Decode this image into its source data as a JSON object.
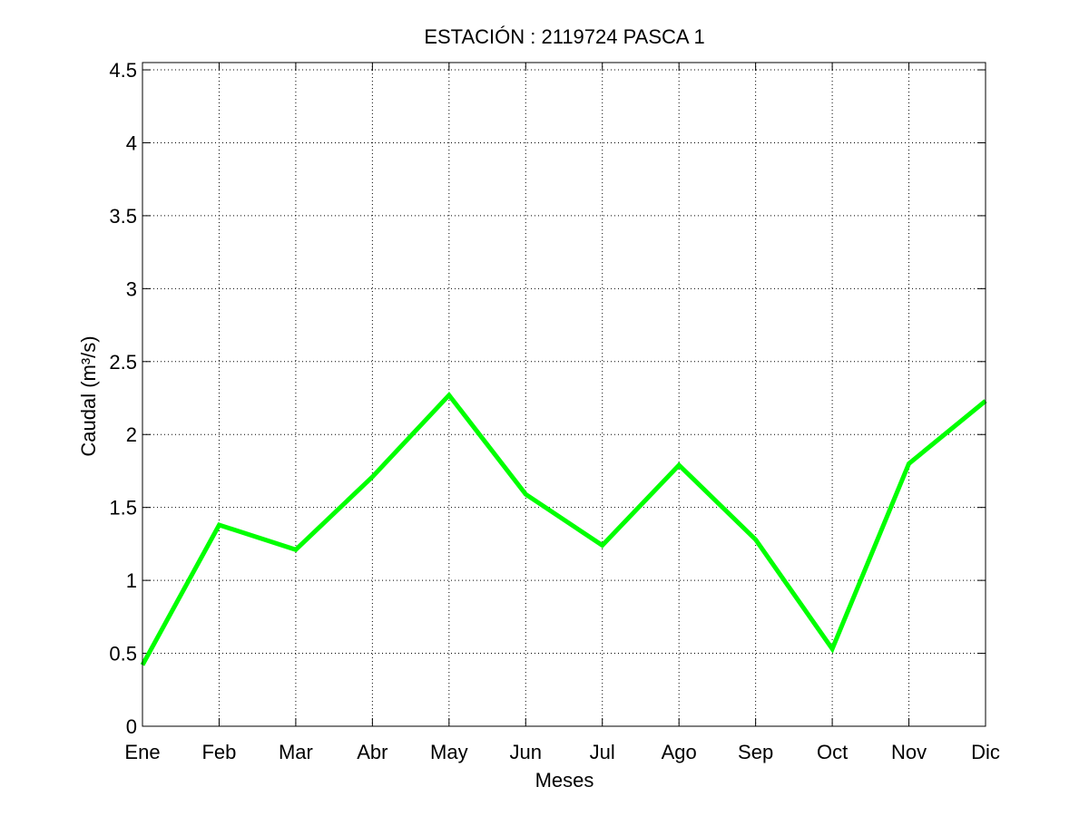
{
  "chart_data": {
    "type": "line",
    "title": "ESTACIÓN :  2119724  PASCA 1",
    "xlabel": "Meses",
    "ylabel": "Caudal (m³/s)",
    "categories": [
      "Ene",
      "Feb",
      "Mar",
      "Abr",
      "May",
      "Jun",
      "Jul",
      "Ago",
      "Sep",
      "Oct",
      "Nov",
      "Dic"
    ],
    "series": [
      {
        "values": [
          0.42,
          1.38,
          1.21,
          1.71,
          2.27,
          1.59,
          1.24,
          1.79,
          1.28,
          0.53,
          1.8,
          2.23
        ],
        "color": "#00ff00"
      }
    ],
    "ylim": [
      0,
      4.55
    ],
    "yticks": [
      0,
      0.5,
      1,
      1.5,
      2,
      2.5,
      3,
      3.5,
      4,
      4.5
    ],
    "ytick_labels": [
      "0",
      "0.5",
      "1",
      "1.5",
      "2",
      "2.5",
      "3",
      "3.5",
      "4",
      "4.5"
    ],
    "grid": true,
    "legend": "none"
  }
}
